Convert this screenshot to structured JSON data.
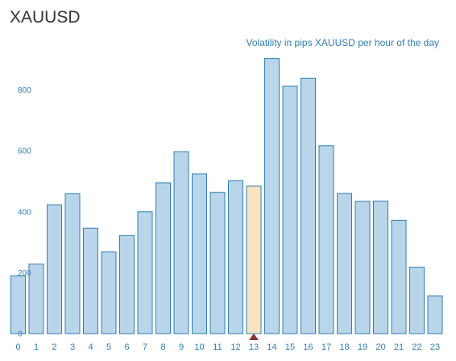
{
  "header": {
    "title": "XAUUSD"
  },
  "chart_data": {
    "type": "bar",
    "title": "Volatility in pips XAUUSD per hour of the day",
    "xlabel": "",
    "ylabel": "",
    "categories": [
      "0",
      "1",
      "2",
      "3",
      "4",
      "5",
      "6",
      "7",
      "8",
      "9",
      "10",
      "11",
      "12",
      "13",
      "14",
      "15",
      "16",
      "17",
      "18",
      "19",
      "20",
      "21",
      "22",
      "23"
    ],
    "values": [
      190,
      228,
      423,
      459,
      346,
      268,
      322,
      400,
      495,
      597,
      524,
      464,
      502,
      484,
      903,
      812,
      838,
      617,
      460,
      434,
      435,
      372,
      218,
      124
    ],
    "ylim": [
      0,
      910
    ],
    "yticks": [
      0,
      200,
      400,
      600,
      800
    ],
    "highlight_index": 13,
    "grid": false,
    "colors": {
      "bar_fill": "#b9d5ea",
      "bar_stroke": "#2f7fb5",
      "highlight_fill": "#fae3c0",
      "highlight_stroke": "#2f7fb5",
      "axis_text": "#2f7fb5",
      "marker": "#8b3232"
    }
  }
}
